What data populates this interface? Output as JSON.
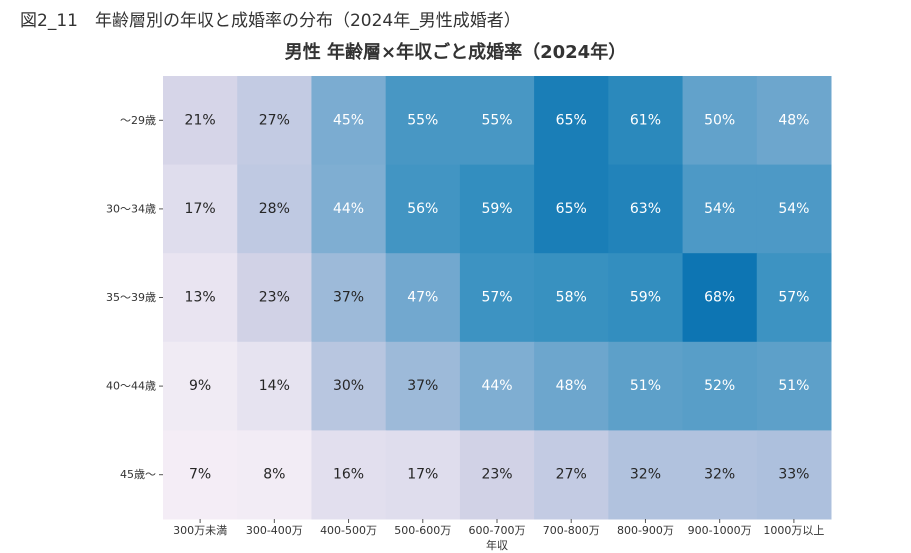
{
  "figure_caption": "図2_11　年齢層別の年収と成婚率の分布（2024年_男性成婚者）",
  "chart_data": {
    "type": "heatmap",
    "title": "男性 年齢層×年収ごと成婚率（2024年）",
    "xlabel": "年収",
    "ylabel": "",
    "x_categories": [
      "300万未満",
      "300-400万",
      "400-500万",
      "500-600万",
      "600-700万",
      "700-800万",
      "800-900万",
      "900-1000万",
      "1000万以上"
    ],
    "y_categories": [
      "～29歳",
      "30～34歳",
      "35～39歳",
      "40～44歳",
      "45歳～"
    ],
    "values": [
      [
        21,
        27,
        45,
        55,
        55,
        65,
        61,
        50,
        48
      ],
      [
        17,
        28,
        44,
        56,
        59,
        65,
        63,
        54,
        54
      ],
      [
        13,
        23,
        37,
        47,
        57,
        58,
        59,
        68,
        57
      ],
      [
        9,
        14,
        30,
        37,
        44,
        48,
        51,
        52,
        51
      ],
      [
        7,
        8,
        16,
        17,
        23,
        27,
        32,
        32,
        33
      ]
    ],
    "value_suffix": "%",
    "colormap": [
      "#fff7fb",
      "#ece7f2",
      "#d0d1e6",
      "#a6bddb",
      "#74a9cf",
      "#3690c0",
      "#0570b0"
    ],
    "value_range": [
      0,
      70
    ],
    "grid": false,
    "legend": "none"
  }
}
